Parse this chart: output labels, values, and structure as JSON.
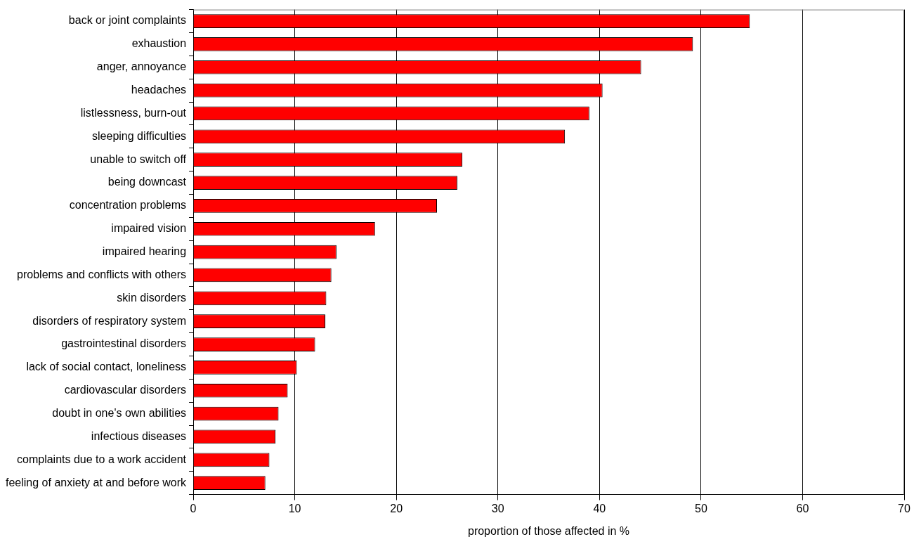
{
  "chart_data": {
    "type": "bar",
    "orientation": "horizontal",
    "xlabel": "proportion of those affected in %",
    "categories": [
      "back or joint complaints",
      "exhaustion",
      "anger, annoyance",
      "headaches",
      "listlessness, burn-out",
      "sleeping difficulties",
      "unable to switch off",
      "being downcast",
      "concentration problems",
      "impaired vision",
      "impaired hearing",
      "problems and conflicts with others",
      "skin disorders",
      "disorders of respiratory system",
      "gastrointestinal disorders",
      "lack of social contact, loneliness",
      "cardiovascular disorders",
      "doubt in one's own abilities",
      "infectious diseases",
      "complaints due to a work accident",
      "feeling of anxiety at and before work"
    ],
    "values": [
      54.8,
      49.2,
      44.1,
      40.3,
      39.0,
      36.6,
      26.5,
      26.0,
      24.0,
      17.9,
      14.1,
      13.6,
      13.1,
      13.0,
      12.0,
      10.2,
      9.3,
      8.4,
      8.1,
      7.5,
      7.1
    ],
    "color": "#ff0000",
    "xlim": [
      0,
      70
    ],
    "xticks": [
      0,
      10,
      20,
      30,
      40,
      50,
      60,
      70
    ],
    "grid": "x",
    "legend": false
  }
}
